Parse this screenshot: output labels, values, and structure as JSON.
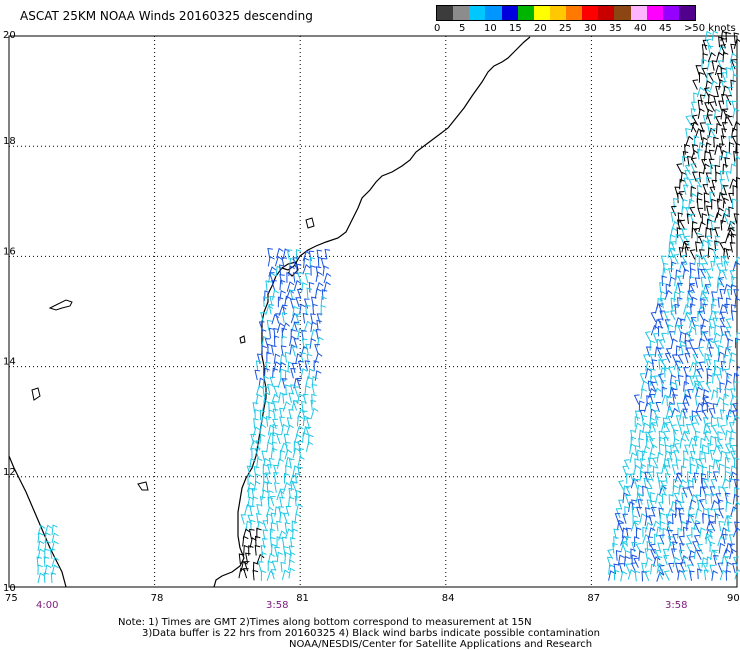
{
  "title": "ASCAT 25KM NOAA Winds 20160325 descending",
  "scale": {
    "labels": [
      "0",
      "5",
      "10",
      "15",
      "20",
      "25",
      "30",
      "35",
      "40",
      "45",
      ">50 knots"
    ],
    "colors": [
      "#3c3c3c",
      "#8c8c8c",
      "#00c8ff",
      "#0096ff",
      "#0000dc",
      "#00b400",
      "#ffff00",
      "#ffc800",
      "#ff7800",
      "#ff0000",
      "#c80000",
      "#8c4614",
      "#ffb4ff",
      "#ff00ff",
      "#9600ff",
      "#50008c"
    ]
  },
  "axes": {
    "x_ticks": [
      "75",
      "78",
      "81",
      "84",
      "87",
      "90"
    ],
    "y_ticks": [
      "20",
      "18",
      "16",
      "14",
      "12",
      "10"
    ]
  },
  "pass_times": [
    "4:00",
    "3:58",
    "3:58"
  ],
  "notes": [
    "Note: 1) Times are GMT 2)Times along bottom correspond to measurement at 15N",
    "3)Data buffer is 22 hrs from 20160325 4) Black wind barbs indicate possible contamination",
    "NOAA/NESDIS/Center for Satellite Applications and Research"
  ],
  "colors": {
    "barb_light": "#22c8e6",
    "barb_dark": "#1a55e0",
    "barb_black": "#000000",
    "time_text": "#7a1a7a"
  }
}
